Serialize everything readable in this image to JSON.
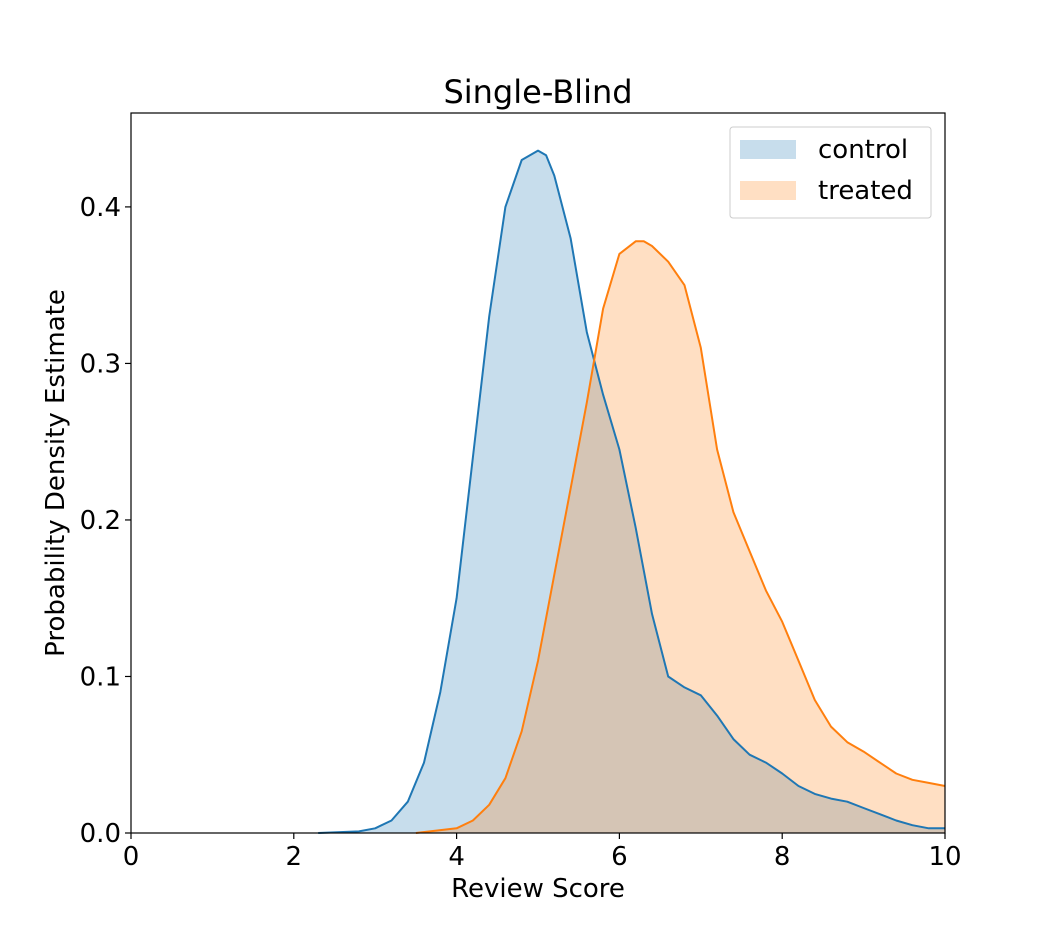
{
  "chart_data": {
    "type": "area",
    "title": "Single-Blind",
    "xlabel": "Review Score",
    "ylabel": "Probability Density Estimate",
    "xlim": [
      0,
      10
    ],
    "ylim": [
      0,
      0.46
    ],
    "xticks": [
      0,
      2,
      4,
      6,
      8,
      10
    ],
    "yticks": [
      0.0,
      0.1,
      0.2,
      0.3,
      0.4
    ],
    "xtick_labels": [
      "0",
      "2",
      "4",
      "6",
      "8",
      "10"
    ],
    "ytick_labels": [
      "0.0",
      "0.1",
      "0.2",
      "0.3",
      "0.4"
    ],
    "grid": false,
    "legend_position": "top-right",
    "series": [
      {
        "name": "control",
        "line_color": "#1f77b4",
        "fill_color": "#1f77b4",
        "fill_opacity": 0.25,
        "x": [
          2.3,
          2.8,
          3.0,
          3.2,
          3.4,
          3.6,
          3.8,
          4.0,
          4.2,
          4.4,
          4.6,
          4.8,
          5.0,
          5.1,
          5.2,
          5.4,
          5.6,
          5.8,
          6.0,
          6.2,
          6.4,
          6.6,
          6.8,
          7.0,
          7.2,
          7.4,
          7.6,
          7.8,
          8.0,
          8.2,
          8.4,
          8.6,
          8.8,
          9.0,
          9.2,
          9.4,
          9.6,
          9.8,
          10.0
        ],
        "y": [
          0.0,
          0.001,
          0.003,
          0.008,
          0.02,
          0.045,
          0.09,
          0.15,
          0.24,
          0.33,
          0.4,
          0.43,
          0.436,
          0.433,
          0.42,
          0.38,
          0.32,
          0.28,
          0.245,
          0.195,
          0.14,
          0.1,
          0.093,
          0.088,
          0.075,
          0.06,
          0.05,
          0.045,
          0.038,
          0.03,
          0.025,
          0.022,
          0.02,
          0.016,
          0.012,
          0.008,
          0.005,
          0.003,
          0.003
        ]
      },
      {
        "name": "treated",
        "line_color": "#ff7f0e",
        "fill_color": "#ff7f0e",
        "fill_opacity": 0.25,
        "x": [
          3.5,
          4.0,
          4.2,
          4.4,
          4.6,
          4.8,
          5.0,
          5.2,
          5.4,
          5.6,
          5.8,
          6.0,
          6.2,
          6.3,
          6.4,
          6.6,
          6.8,
          7.0,
          7.2,
          7.4,
          7.6,
          7.8,
          8.0,
          8.2,
          8.4,
          8.6,
          8.8,
          9.0,
          9.2,
          9.4,
          9.6,
          9.8,
          10.0
        ],
        "y": [
          0.0,
          0.003,
          0.008,
          0.018,
          0.035,
          0.065,
          0.11,
          0.165,
          0.22,
          0.275,
          0.335,
          0.37,
          0.378,
          0.378,
          0.375,
          0.365,
          0.35,
          0.31,
          0.245,
          0.205,
          0.18,
          0.155,
          0.135,
          0.11,
          0.085,
          0.068,
          0.058,
          0.052,
          0.045,
          0.038,
          0.034,
          0.032,
          0.03
        ]
      }
    ]
  }
}
